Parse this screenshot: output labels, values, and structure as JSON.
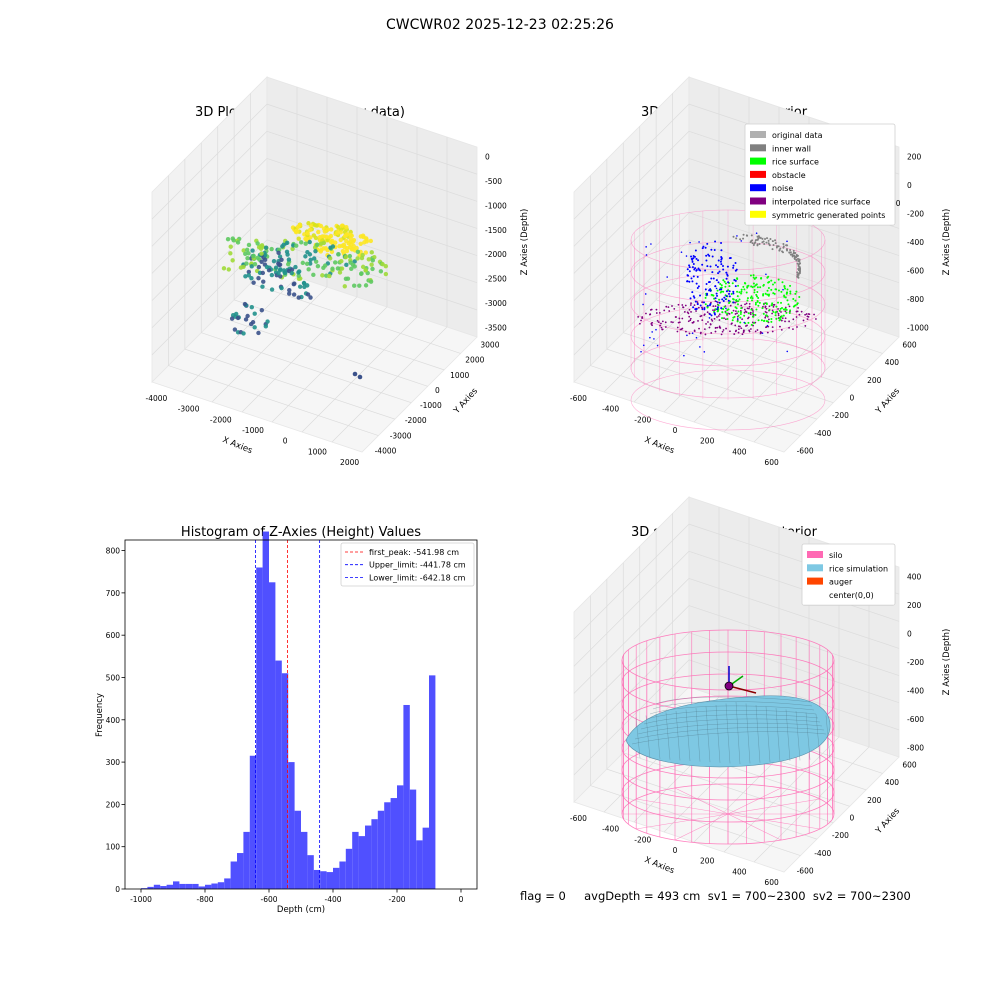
{
  "suptitle": "CWCWR02 2025-12-23 02:25:26",
  "footer": "flag = 0     avgDepth = 493 cm  sv1 = 700~2300  sv2 = 700~2300",
  "colors": {
    "hist_bar": "#5050ff",
    "peak_line": "#ff0000",
    "limit_line": "#0000ff",
    "silo": "#ff69b4",
    "rice_sim": "#7ec8e3",
    "auger": "#ff4500",
    "original": "#b0b0b0",
    "inner_wall": "#808080",
    "rice_surface": "#00ff00",
    "obstacle": "#ff0000",
    "noise": "#0000ff",
    "interp": "#800080",
    "symmetric": "#ffff00"
  },
  "chart_data": [
    {
      "type": "scatter",
      "title": "3D Plot of Silo Interior(row data)",
      "xlabel": "X Axies",
      "ylabel": "Y Axies",
      "zlabel": "Z Axies (Depth)",
      "x_ticks": [
        "-4000",
        "-3000",
        "-2000",
        "-1000",
        "0",
        "1000",
        "2000"
      ],
      "y_ticks": [
        "-4000",
        "-3000",
        "-2000",
        "-1000",
        "0",
        "1000",
        "2000",
        "3000"
      ],
      "z_ticks": [
        "0",
        "-500",
        "-1000",
        "-1500",
        "-2000",
        "-2500",
        "-3000",
        "-3500"
      ],
      "colormap": "viridis"
    },
    {
      "type": "scatter",
      "title": "3D classify of Silo Interior",
      "xlabel": "X Axies",
      "ylabel": "Y Axies",
      "zlabel": "Z Axies (Depth)",
      "x_ticks": [
        "-600",
        "-400",
        "-200",
        "0",
        "200",
        "400",
        "600"
      ],
      "y_ticks": [
        "-600",
        "-400",
        "-200",
        "0",
        "200",
        "400",
        "600"
      ],
      "z_ticks": [
        "200",
        "0",
        "-200",
        "-400",
        "-600",
        "-800",
        "-1000"
      ],
      "z_top_tick": "00",
      "legend": [
        "original data",
        "inner wall",
        "rice surface",
        "obstacle",
        "noise",
        "interpolated rice surface",
        "symmetric generated points"
      ],
      "legend_placement": "top-right"
    },
    {
      "type": "bar",
      "title": "Histogram of Z-Axies (Height) Values",
      "xlabel": "Depth (cm)",
      "ylabel": "Frequency",
      "xlim": [
        -1050,
        50
      ],
      "ylim": [
        0,
        825
      ],
      "x_ticks": [
        -1000,
        -800,
        -600,
        -400,
        -200,
        0
      ],
      "y_ticks": [
        0,
        100,
        200,
        300,
        400,
        500,
        600,
        700,
        800
      ],
      "bin_edges_start": -1000,
      "bin_width": 20,
      "values": [
        2,
        5,
        10,
        7,
        10,
        18,
        12,
        12,
        12,
        6,
        10,
        13,
        16,
        25,
        65,
        85,
        135,
        315,
        760,
        845,
        725,
        540,
        510,
        300,
        185,
        135,
        80,
        45,
        42,
        40,
        50,
        65,
        95,
        135,
        125,
        150,
        165,
        185,
        205,
        215,
        245,
        435,
        235,
        115,
        145,
        505
      ],
      "reference_lines": [
        {
          "label": "first_peak: -541.98 cm",
          "x": -541.98,
          "color": "red"
        },
        {
          "label": "Upper_limit: -441.78 cm",
          "x": -441.78,
          "color": "blue"
        },
        {
          "label": "Lower_limit: -642.18 cm",
          "x": -642.18,
          "color": "blue"
        }
      ],
      "legend_placement": "top-right"
    },
    {
      "type": "other",
      "title": "3D simulation of Silo Interior",
      "xlabel": "X Axies",
      "ylabel": "Y Axies",
      "zlabel": "Z Axies (Depth)",
      "x_ticks": [
        "-600",
        "-400",
        "-200",
        "0",
        "200",
        "400",
        "600"
      ],
      "y_ticks": [
        "-600",
        "-400",
        "-200",
        "0",
        "200",
        "400",
        "600"
      ],
      "z_ticks": [
        "400",
        "200",
        "0",
        "-200",
        "-400",
        "-600",
        "-800"
      ],
      "legend": [
        "silo",
        "rice simulation",
        "auger",
        "center(0,0)"
      ],
      "legend_placement": "top-right"
    }
  ]
}
